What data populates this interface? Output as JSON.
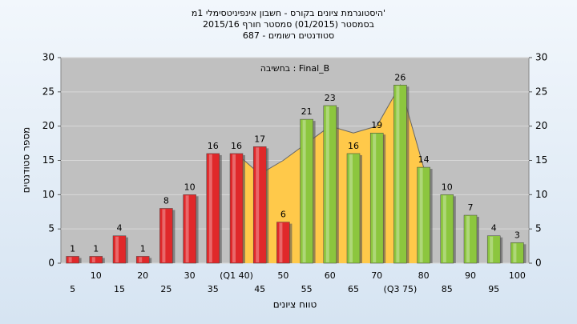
{
  "chart_data": {
    "type": "bar",
    "title_lines": [
      "היסטוגרמת ציונים בקורס - חשבון אינפיניטסימלי 1מ'",
      "בסמסטר (01/2015) סמסטר חורף 2015/16",
      "סטודנטים רשומים - 687"
    ],
    "annotation": "בחשיבה : Final_B",
    "y_label": "מספר סטודנטים",
    "x_label": "טווח ציונים",
    "categories": [
      "5",
      "10",
      "15",
      "20",
      "25",
      "30",
      "35",
      "(Q1 40)",
      "45",
      "50",
      "55",
      "60",
      "65",
      "70",
      "(Q3 75)",
      "80",
      "85",
      "90",
      "95",
      "100"
    ],
    "values": [
      1,
      1,
      4,
      1,
      8,
      10,
      16,
      16,
      17,
      6,
      21,
      23,
      16,
      19,
      26,
      14,
      10,
      7,
      4,
      3
    ],
    "colors": [
      "#e0282a",
      "#e0282a",
      "#e0282a",
      "#e0282a",
      "#e0282a",
      "#e0282a",
      "#e0282a",
      "#e0282a",
      "#e0282a",
      "#e0282a",
      "#8cc63e",
      "#8cc63e",
      "#8cc63e",
      "#8cc63e",
      "#8cc63e",
      "#8cc63e",
      "#8cc63e",
      "#8cc63e",
      "#8cc63e",
      "#8cc63e"
    ],
    "band": {
      "color": "#ffc94a",
      "values": [
        null,
        null,
        null,
        null,
        null,
        null,
        null,
        16,
        13,
        15,
        17.5,
        20,
        19,
        20,
        26,
        14,
        null,
        null,
        null,
        null
      ]
    },
    "ylim": [
      0,
      30
    ],
    "yticks": [
      0,
      5,
      10,
      15,
      20,
      25,
      30
    ],
    "y2lim": [
      0,
      30
    ],
    "y2ticks": [
      0,
      5,
      10,
      15,
      20,
      25,
      30
    ],
    "grid": true
  }
}
